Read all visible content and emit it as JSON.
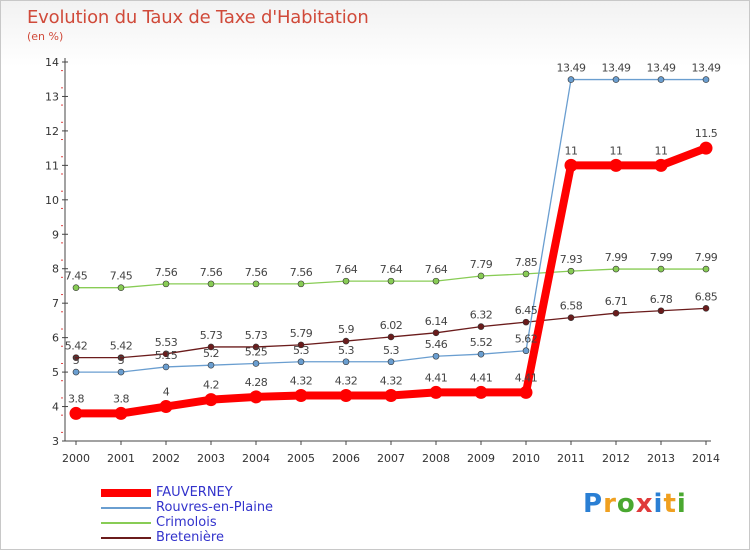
{
  "header": {
    "title": "Evolution du Taux de Taxe d'Habitation",
    "unit": "(en %)"
  },
  "chart_data": {
    "type": "line",
    "title": "Evolution du Taux de Taxe d'Habitation",
    "ylabel": "(en %)",
    "xlabel": "",
    "ylim": [
      3,
      14
    ],
    "yticks": [
      "3",
      "4",
      "5",
      "6",
      "7",
      "8",
      "9",
      "10",
      "11",
      "12",
      "13",
      "14"
    ],
    "categories": [
      "2000",
      "2001",
      "2002",
      "2003",
      "2004",
      "2005",
      "2006",
      "2007",
      "2008",
      "2009",
      "2010",
      "2011",
      "2012",
      "2013",
      "2014"
    ],
    "grid": false,
    "legend_position": "bottom-left",
    "series": [
      {
        "name": "Crimolois",
        "color": "#88cc55",
        "values": [
          7.45,
          7.45,
          7.56,
          7.56,
          7.56,
          7.56,
          7.64,
          7.64,
          7.64,
          7.79,
          7.85,
          7.93,
          7.99,
          7.99,
          7.99
        ],
        "labels": [
          "7.45",
          "7.45",
          "7.56",
          "7.56",
          "7.56",
          "7.56",
          "7.64",
          "7.64",
          "7.64",
          "7.79",
          "7.85",
          "7.93",
          "7.99",
          "7.99",
          "7.99"
        ]
      },
      {
        "name": "Bretenière",
        "color": "#6b1c1c",
        "values": [
          5.42,
          5.42,
          5.53,
          5.73,
          5.73,
          5.79,
          5.9,
          6.02,
          6.14,
          6.32,
          6.45,
          6.58,
          6.71,
          6.78,
          6.85
        ],
        "labels": [
          "5.42",
          "5.42",
          "5.53",
          "5.73",
          "5.73",
          "5.79",
          "5.9",
          "6.02",
          "6.14",
          "6.32",
          "6.45",
          "6.58",
          "6.71",
          "6.78",
          "6.85"
        ]
      },
      {
        "name": "Rouvres-en-Plaine",
        "color": "#6a9ed0",
        "values": [
          5,
          5,
          5.15,
          5.2,
          5.25,
          5.3,
          5.3,
          5.3,
          5.46,
          5.52,
          5.62,
          13.49,
          13.49,
          13.49,
          13.49
        ],
        "labels": [
          "5",
          "5",
          "5.15",
          "5.2",
          "5.25",
          "5.3",
          "5.3",
          "5.3",
          "5.46",
          "5.52",
          "5.62",
          "13.49",
          "13.49",
          "13.49",
          "13.49"
        ]
      },
      {
        "name": "FAUVERNEY",
        "color": "#ff0000",
        "values": [
          3.8,
          3.8,
          4,
          4.2,
          4.28,
          4.32,
          4.32,
          4.32,
          4.41,
          4.41,
          4.41,
          11,
          11,
          11,
          11.5
        ],
        "labels": [
          "3.8",
          "3.8",
          "4",
          "4.2",
          "4.28",
          "4.32",
          "4.32",
          "4.32",
          "4.41",
          "4.41",
          "4.41",
          "11",
          "11",
          "11",
          "11.5"
        ]
      }
    ]
  },
  "legend": {
    "items": [
      {
        "name": "FAUVERNEY",
        "color": "#ff0000",
        "text_color": "#3333cc"
      },
      {
        "name": "Rouvres-en-Plaine",
        "color": "#6a9ed0",
        "text_color": "#3333cc"
      },
      {
        "name": "Crimolois",
        "color": "#88cc55",
        "text_color": "#3333cc"
      },
      {
        "name": "Bretenière",
        "color": "#6b1c1c",
        "text_color": "#3333cc"
      }
    ]
  },
  "logo": {
    "letters": [
      "P",
      "r",
      "o",
      "x",
      "i",
      "t",
      "i"
    ],
    "colors": [
      "#2a7fd4",
      "#f0a020",
      "#4aa830",
      "#e03a3a",
      "#2a7fd4",
      "#f0a020",
      "#4aa830"
    ]
  }
}
